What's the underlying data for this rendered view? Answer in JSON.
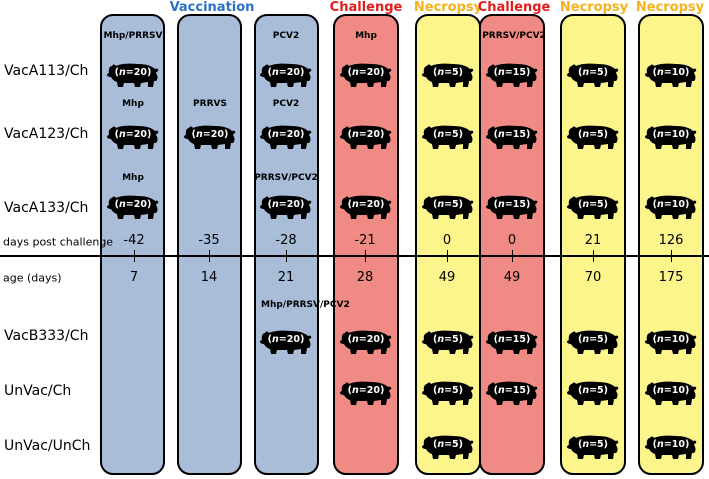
{
  "headers": [
    {
      "text": "Vaccination",
      "color": "#2b73c4"
    },
    {
      "text": "Challenge",
      "color": "#e21d1d"
    },
    {
      "text": "Necropsy",
      "color": "#f5b21a"
    },
    {
      "text": "Challenge",
      "color": "#e21d1d"
    },
    {
      "text": "Necropsy",
      "color": "#f5b21a"
    },
    {
      "text": "Necropsy",
      "color": "#f5b21a"
    }
  ],
  "groups": [
    "VacA113/Ch",
    "VacA123/Ch",
    "VacA133/Ch",
    "VacB333/Ch",
    "UnVac/Ch",
    "UnVac/UnCh"
  ],
  "axis": {
    "dpc_label": "days post challenge",
    "age_label": "age (days)",
    "dpc": [
      "-42",
      "-35",
      "-28",
      "-21",
      "0",
      "0",
      "21",
      "126"
    ],
    "age": [
      "7",
      "14",
      "21",
      "28",
      "49",
      "49",
      "70",
      "175"
    ]
  },
  "cell_labels": [
    "Mhp/PRRSV",
    "PCV2",
    "Mhp",
    "Mhp",
    "PRRVS",
    "PCV2",
    "Mhp",
    "PRRSV/PCV2",
    "Mhp/PRRSV/PCV2",
    "PRRSV/PCV2"
  ],
  "pig_icon": "pig-silhouette-icon",
  "n_prefix": "n",
  "n_values": {
    "n20": "=20)",
    "n15": "=15)",
    "n5": "=5)",
    "n10": "=10)"
  },
  "colors": {
    "vaccination": "#a9bdd9",
    "challenge": "#f08a84",
    "necropsy": "#fbf58b"
  }
}
